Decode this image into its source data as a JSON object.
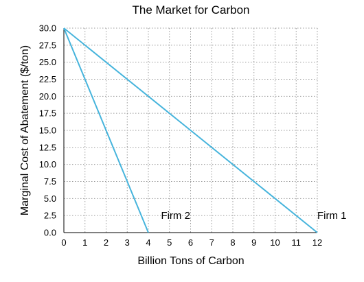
{
  "chart_data": {
    "type": "line",
    "title": "The Market for Carbon",
    "xlabel": "Billion Tons of Carbon",
    "ylabel": "Marginal Cost of Abatement ($/ton)",
    "xlim": [
      0,
      12
    ],
    "ylim": [
      0,
      30
    ],
    "x_ticks": [
      "0",
      "1",
      "2",
      "3",
      "4",
      "5",
      "6",
      "7",
      "8",
      "9",
      "10",
      "11",
      "12"
    ],
    "y_ticks": [
      "0.0",
      "2.5",
      "5.0",
      "7.5",
      "10.0",
      "12.5",
      "15.0",
      "17.5",
      "20.0",
      "22.5",
      "25.0",
      "27.5",
      "30.0"
    ],
    "grid": true,
    "series": [
      {
        "points": [
          [
            0,
            30
          ],
          [
            12,
            0
          ]
        ],
        "color": "#46b4dc"
      },
      {
        "points": [
          [
            0,
            30
          ],
          [
            4,
            0
          ]
        ],
        "color": "#46b4dc"
      }
    ],
    "annotations": [
      {
        "text": "Firm 1",
        "x": 12,
        "y": 2.5
      },
      {
        "text": "Firm 2",
        "x": 4.6,
        "y": 2.5
      }
    ]
  }
}
